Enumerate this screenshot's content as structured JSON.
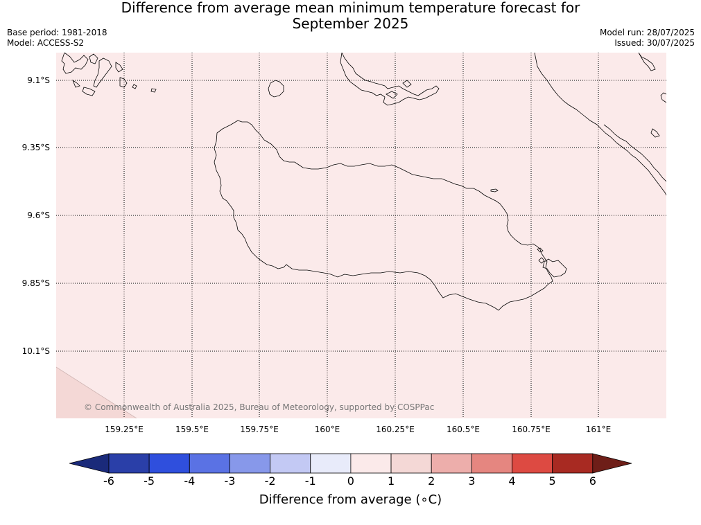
{
  "title_line1": "Difference from average mean minimum temperature forecast for",
  "title_line2": "September 2025",
  "base_period": "Base period: 1981-2018",
  "model": "Model: ACCESS-S2",
  "model_run": "Model run: 28/07/2025",
  "issued": "Issued: 30/07/2025",
  "copyright": "© Commonwealth of Australia 2025, Bureau of Meteorology, supported by COSPPac",
  "lat_labels": [
    "9.1°S",
    "9.35°S",
    "9.6°S",
    "9.85°S",
    "10.1°S"
  ],
  "lon_labels": [
    "159.25°E",
    "159.5°E",
    "159.75°E",
    "160°E",
    "160.25°E",
    "160.5°E",
    "160.75°E",
    "161°E"
  ],
  "colorbar": {
    "title": "Difference from average (∘C)",
    "tick_labels": [
      "-6",
      "-5",
      "-4",
      "-3",
      "-2",
      "-1",
      "0",
      "1",
      "2",
      "3",
      "4",
      "5",
      "6"
    ],
    "colors": [
      "#1a2a7a",
      "#2a3fa8",
      "#2f4fdd",
      "#5a72e4",
      "#8798ea",
      "#c3c9f4",
      "#e8ebfa",
      "#fbeaea",
      "#f4d8d6",
      "#edaeab",
      "#e58680",
      "#dd4a42",
      "#a82a22",
      "#6e1e18"
    ]
  },
  "map_colors": {
    "ocean_anomaly": "#fbeaea",
    "corner_anomaly": "#f4d8d6",
    "coastline": "#000000"
  }
}
